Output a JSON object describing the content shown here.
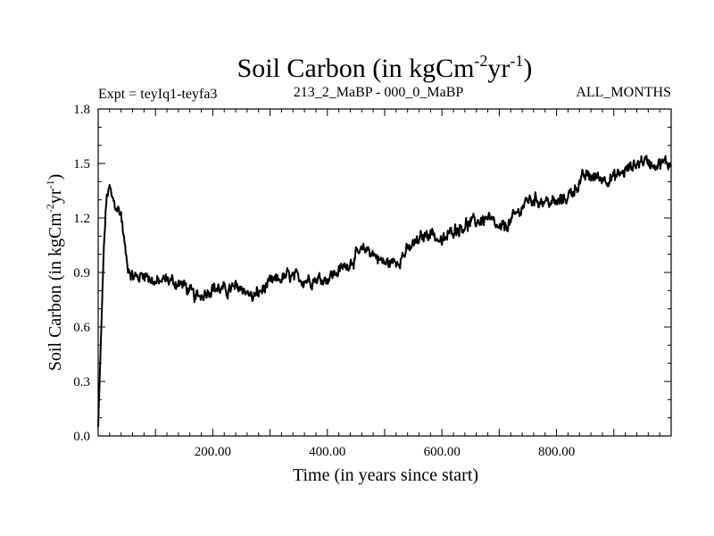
{
  "chart_data": {
    "type": "line",
    "title_main": "Soil Carbon (in kgCm",
    "title_exp1": "-2",
    "title_mid": "yr",
    "title_exp2": "-1",
    "title_end": ")",
    "subtitle_left": "Expt = teyIq1-teyfa3",
    "subtitle_center": "213_2_MaBP - 000_0_MaBP",
    "subtitle_right": "ALL_MONTHS",
    "xlabel": "Time (in years since start)",
    "ylabel_main": "Soil Carbon (in kgCm",
    "ylabel_exp1": "-2",
    "ylabel_mid": "yr",
    "ylabel_exp2": "-1",
    "ylabel_end": ")",
    "xlim": [
      0,
      1000
    ],
    "ylim": [
      0,
      1.8
    ],
    "x_ticks": [
      200,
      400,
      600,
      800
    ],
    "x_tick_labels": [
      "200.00",
      "400.00",
      "600.00",
      "800.00"
    ],
    "y_ticks": [
      0,
      0.3,
      0.6,
      0.9,
      1.2,
      1.5,
      1.8
    ],
    "y_tick_labels": [
      "0.0",
      "0.3",
      "0.6",
      "0.9",
      "1.2",
      "1.5",
      "1.8"
    ],
    "series": [
      {
        "name": "Soil Carbon",
        "color": "#000000",
        "x": [
          0,
          5,
          10,
          15,
          20,
          25,
          30,
          40,
          50,
          60,
          70,
          80,
          100,
          120,
          150,
          170,
          180,
          200,
          220,
          250,
          270,
          300,
          330,
          360,
          400,
          430,
          450,
          470,
          500,
          520,
          550,
          580,
          600,
          620,
          650,
          680,
          700,
          720,
          750,
          770,
          800,
          820,
          850,
          880,
          900,
          930,
          950,
          970,
          1000
        ],
        "y": [
          0.05,
          0.55,
          1.05,
          1.32,
          1.36,
          1.3,
          1.27,
          1.22,
          0.95,
          0.88,
          0.87,
          0.9,
          0.84,
          0.86,
          0.83,
          0.76,
          0.78,
          0.82,
          0.8,
          0.82,
          0.76,
          0.84,
          0.88,
          0.86,
          0.87,
          0.93,
          0.99,
          1.03,
          0.95,
          0.96,
          1.05,
          1.13,
          1.06,
          1.14,
          1.17,
          1.2,
          1.13,
          1.18,
          1.3,
          1.3,
          1.28,
          1.32,
          1.43,
          1.42,
          1.42,
          1.48,
          1.52,
          1.5,
          1.5
        ]
      }
    ]
  }
}
